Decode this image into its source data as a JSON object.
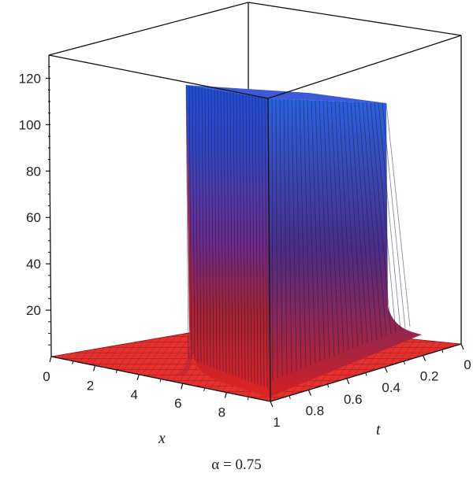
{
  "chart_data": {
    "type": "surface3d",
    "title": "",
    "caption": "α = 0.75",
    "xlabel": "x",
    "ylabel": "t",
    "zlabel": "",
    "x_ticks": [
      "0",
      "2",
      "4",
      "6",
      "8"
    ],
    "t_ticks": [
      "0",
      "0.2",
      "0.4",
      "0.6",
      "0.8",
      "1"
    ],
    "z_ticks": [
      "20",
      "40",
      "60",
      "80",
      "100",
      "120"
    ],
    "xlim": [
      0,
      10
    ],
    "tlim": [
      0,
      1
    ],
    "zlim": [
      0,
      130
    ],
    "surface": {
      "description_values": {
        "baseline_height": 0,
        "peak_height": 120,
        "peak_x": 6.5
      }
    },
    "colors": {
      "low": "#e02424",
      "mid": "#6a2a8a",
      "high": "#1e4fd6",
      "mesh": "#7a1010",
      "frame": "#111111"
    }
  }
}
